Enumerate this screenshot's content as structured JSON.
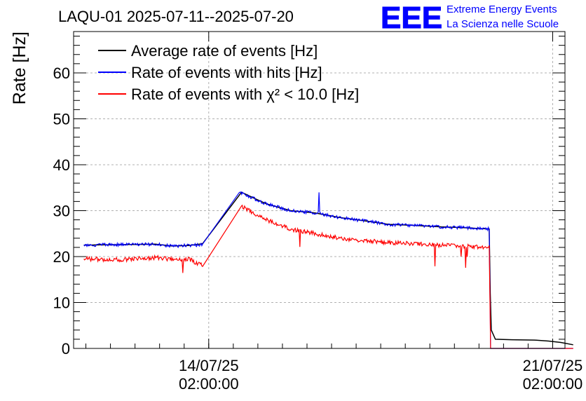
{
  "chart_data": {
    "type": "line",
    "title": "LAQU-01 2025-07-11--2025-07-20",
    "ylabel": "Rate [Hz]",
    "xlabel": "",
    "ylim": [
      0,
      69
    ],
    "x_axis": {
      "start": "2025-07-11T08:00",
      "end": "2025-07-21T08:00",
      "tick_labels": [
        {
          "at": "2025-07-14T02:00",
          "line1": "14/07/25",
          "line2": "02:00:00"
        },
        {
          "at": "2025-07-21T02:00",
          "line1": "21/07/25",
          "line2": "02:00:00"
        }
      ]
    },
    "y_ticks": [
      0,
      10,
      20,
      30,
      40,
      50,
      60
    ],
    "grid": true,
    "legend_position": "top-left",
    "series": [
      {
        "name": "Average rate of events [Hz]",
        "color": "#000000",
        "points": [
          [
            "2025-07-11T13:00",
            22.5
          ],
          [
            "2025-07-12T08:00",
            22.6
          ],
          [
            "2025-07-13T00:00",
            22.7
          ],
          [
            "2025-07-13T08:00",
            22.3
          ],
          [
            "2025-07-13T16:00",
            22.4
          ],
          [
            "2025-07-13T23:00",
            22.8
          ],
          [
            "2025-07-14T18:00",
            34.0
          ],
          [
            "2025-07-15T06:00",
            31.5
          ],
          [
            "2025-07-15T18:00",
            30.0
          ],
          [
            "2025-07-16T06:00",
            29.5
          ],
          [
            "2025-07-16T18:00",
            28.5
          ],
          [
            "2025-07-17T06:00",
            27.8
          ],
          [
            "2025-07-17T18:00",
            27.0
          ],
          [
            "2025-07-18T06:00",
            26.8
          ],
          [
            "2025-07-18T18:00",
            26.5
          ],
          [
            "2025-07-19T06:00",
            26.3
          ],
          [
            "2025-07-19T19:00",
            26.0
          ],
          [
            "2025-07-19T19:30",
            12.0
          ],
          [
            "2025-07-19T20:00",
            4.0
          ],
          [
            "2025-07-19T22:00",
            2.0
          ],
          [
            "2025-07-20T06:00",
            1.9
          ],
          [
            "2025-07-20T18:00",
            1.8
          ],
          [
            "2025-07-21T00:00",
            1.6
          ],
          [
            "2025-07-21T06:00",
            1.3
          ],
          [
            "2025-07-21T12:00",
            0.8
          ]
        ]
      },
      {
        "name": "Rate of events with hits [Hz]",
        "color": "#0000ff",
        "points": [
          [
            "2025-07-11T13:00",
            22.5
          ],
          [
            "2025-07-12T08:00",
            22.6
          ],
          [
            "2025-07-13T00:00",
            22.7
          ],
          [
            "2025-07-13T08:00",
            22.3
          ],
          [
            "2025-07-13T16:00",
            22.4
          ],
          [
            "2025-07-13T23:00",
            22.6
          ],
          [
            "2025-07-14T17:00",
            34.0
          ],
          [
            "2025-07-15T06:00",
            31.5
          ],
          [
            "2025-07-15T18:00",
            30.0
          ],
          [
            "2025-07-16T06:00",
            29.5
          ],
          [
            "2025-07-16T18:00",
            28.5
          ],
          [
            "2025-07-17T06:00",
            27.8
          ],
          [
            "2025-07-17T18:00",
            27.0
          ],
          [
            "2025-07-18T06:00",
            26.8
          ],
          [
            "2025-07-18T18:00",
            26.5
          ],
          [
            "2025-07-19T06:00",
            26.3
          ],
          [
            "2025-07-19T19:00",
            26.0
          ],
          [
            "2025-07-19T19:40",
            0.0
          ],
          [
            "2025-07-21T12:00",
            0.0
          ]
        ]
      },
      {
        "name": "Rate of events with χ² < 10.0 [Hz]",
        "color": "#ff0000",
        "points": [
          [
            "2025-07-11T13:00",
            19.5
          ],
          [
            "2025-07-12T08:00",
            19.3
          ],
          [
            "2025-07-13T00:00",
            19.8
          ],
          [
            "2025-07-13T08:00",
            19.4
          ],
          [
            "2025-07-13T16:00",
            19.5
          ],
          [
            "2025-07-13T23:00",
            18.0
          ],
          [
            "2025-07-14T18:00",
            31.0
          ],
          [
            "2025-07-15T06:00",
            28.0
          ],
          [
            "2025-07-15T18:00",
            26.0
          ],
          [
            "2025-07-16T06:00",
            25.0
          ],
          [
            "2025-07-16T18:00",
            24.0
          ],
          [
            "2025-07-17T06:00",
            23.5
          ],
          [
            "2025-07-17T18:00",
            23.0
          ],
          [
            "2025-07-18T06:00",
            22.8
          ],
          [
            "2025-07-18T18:00",
            22.5
          ],
          [
            "2025-07-19T06:00",
            22.3
          ],
          [
            "2025-07-19T19:00",
            22.0
          ],
          [
            "2025-07-19T19:40",
            0.0
          ],
          [
            "2025-07-21T12:00",
            0.0
          ]
        ]
      }
    ]
  },
  "logo": {
    "mark": "EEE",
    "line1": "Extreme Energy Events",
    "line2": "La Scienza nelle Scuole",
    "color": "#0000ff"
  }
}
